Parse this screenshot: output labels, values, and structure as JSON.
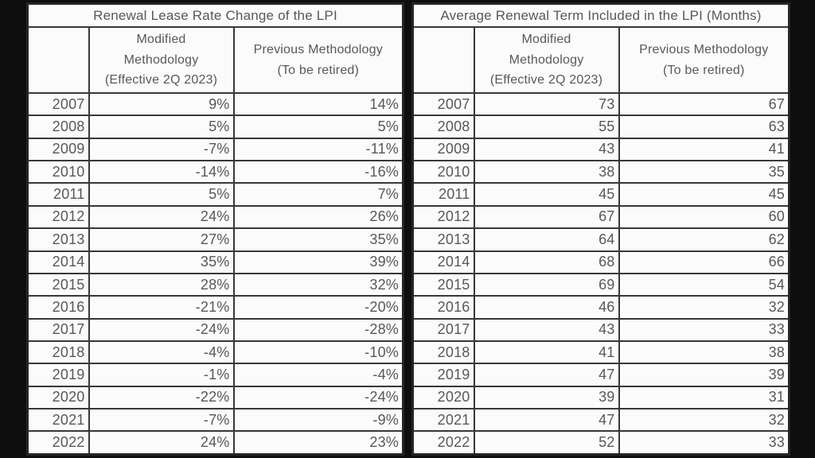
{
  "page": {
    "background_color": "#0e0e0e",
    "table_background_color": "#fbfbfb",
    "border_color": "#383838",
    "text_color": "#585858"
  },
  "chart_data": [
    {
      "type": "table",
      "title": "Renewal Lease Rate Change of the LPI",
      "columns": [
        "",
        "Modified\nMethodology\n(Effective 2Q 2023)",
        "Previous Methodology\n(To be retired)"
      ],
      "rows": [
        [
          "2007",
          "9%",
          "14%"
        ],
        [
          "2008",
          "5%",
          "5%"
        ],
        [
          "2009",
          "-7%",
          "-11%"
        ],
        [
          "2010",
          "-14%",
          "-16%"
        ],
        [
          "2011",
          "5%",
          "7%"
        ],
        [
          "2012",
          "24%",
          "26%"
        ],
        [
          "2013",
          "27%",
          "35%"
        ],
        [
          "2014",
          "35%",
          "39%"
        ],
        [
          "2015",
          "28%",
          "32%"
        ],
        [
          "2016",
          "-21%",
          "-20%"
        ],
        [
          "2017",
          "-24%",
          "-28%"
        ],
        [
          "2018",
          "-4%",
          "-10%"
        ],
        [
          "2019",
          "-1%",
          "-4%"
        ],
        [
          "2020",
          "-22%",
          "-24%"
        ],
        [
          "2021",
          "-7%",
          "-9%"
        ],
        [
          "2022",
          "24%",
          "23%"
        ]
      ]
    },
    {
      "type": "table",
      "title": "Average Renewal Term Included in the LPI (Months)",
      "columns": [
        "",
        "Modified\nMethodology\n(Effective 2Q 2023)",
        "Previous Methodology\n(To be retired)"
      ],
      "rows": [
        [
          "2007",
          "73",
          "67"
        ],
        [
          "2008",
          "55",
          "63"
        ],
        [
          "2009",
          "43",
          "41"
        ],
        [
          "2010",
          "38",
          "35"
        ],
        [
          "2011",
          "45",
          "45"
        ],
        [
          "2012",
          "67",
          "60"
        ],
        [
          "2013",
          "64",
          "62"
        ],
        [
          "2014",
          "68",
          "66"
        ],
        [
          "2015",
          "69",
          "54"
        ],
        [
          "2016",
          "46",
          "32"
        ],
        [
          "2017",
          "43",
          "33"
        ],
        [
          "2018",
          "41",
          "38"
        ],
        [
          "2019",
          "47",
          "39"
        ],
        [
          "2020",
          "39",
          "31"
        ],
        [
          "2021",
          "47",
          "32"
        ],
        [
          "2022",
          "52",
          "33"
        ]
      ]
    }
  ]
}
